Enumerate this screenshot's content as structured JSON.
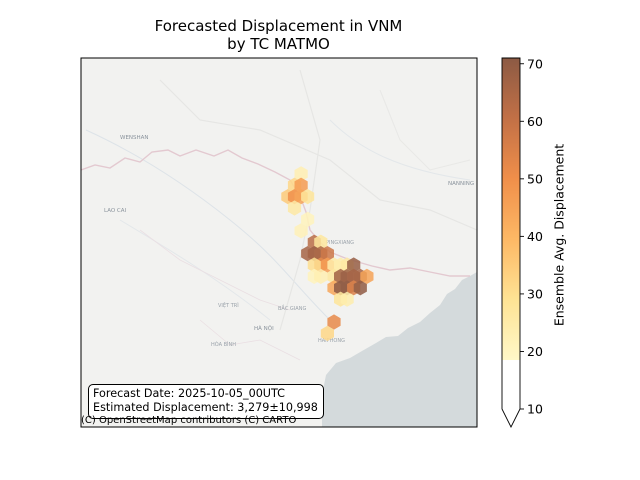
{
  "title": {
    "line1": "Forecasted Displacement in VNM",
    "line2": "by TC MATMO"
  },
  "info": {
    "forecast_date": "Forecast Date: 2025-10-05_00UTC",
    "estimated_displacement": "Estimated Displacement: 3,279±10,998"
  },
  "attribution": "(C) OpenStreetMap contributors (C) CARTO",
  "colorbar": {
    "label": "Ensemble Avg. Displacement",
    "min": 10,
    "max": 71,
    "ticks": [
      10,
      20,
      30,
      40,
      50,
      60,
      70
    ],
    "tick_labels": [
      "10",
      "20",
      "30",
      "40",
      "50",
      "60",
      "70"
    ],
    "cmap": "YlOrBr-to-brown",
    "extend": "min",
    "white_below": 18.5
  },
  "colors": {
    "land": "#f2f2f0",
    "sea": "#d4dadc",
    "border": "#000000"
  },
  "place_labels": [
    "WENSHAN",
    "LAO CAI",
    "PINGXIANG",
    "NANNING",
    "VIỆT TRÌ",
    "BẮC GIANG",
    "HÀ NỘI",
    "HÒA BÌNH",
    "HAIPHONG"
  ],
  "chart_data": {
    "type": "hexbin",
    "value_label": "Ensemble Avg. Displacement",
    "cells": [
      {
        "col": 7,
        "row": 2,
        "value": 23
      },
      {
        "col": 6,
        "row": 3,
        "value": 32
      },
      {
        "col": 7,
        "row": 3,
        "value": 47
      },
      {
        "col": 5,
        "row": 4,
        "value": 35
      },
      {
        "col": 6,
        "row": 4,
        "value": 50
      },
      {
        "col": 7,
        "row": 4,
        "value": 45
      },
      {
        "col": 8,
        "row": 4,
        "value": 28
      },
      {
        "col": 6,
        "row": 5,
        "value": 26
      },
      {
        "col": 8,
        "row": 6,
        "value": 21
      },
      {
        "col": 7,
        "row": 7,
        "value": 22
      },
      {
        "col": 9,
        "row": 8,
        "value": 62
      },
      {
        "col": 10,
        "row": 8,
        "value": 27
      },
      {
        "col": 9,
        "row": 9,
        "value": 68
      },
      {
        "col": 10,
        "row": 9,
        "value": 65
      },
      {
        "col": 11,
        "row": 9,
        "value": 58
      },
      {
        "col": 8,
        "row": 9,
        "value": 66
      },
      {
        "col": 10,
        "row": 10,
        "value": 52
      },
      {
        "col": 11,
        "row": 10,
        "value": 47
      },
      {
        "col": 12,
        "row": 10,
        "value": 25
      },
      {
        "col": 13,
        "row": 10,
        "value": 24
      },
      {
        "col": 14,
        "row": 10,
        "value": 26
      },
      {
        "col": 15,
        "row": 10,
        "value": 69
      },
      {
        "col": 9,
        "row": 10,
        "value": 30
      },
      {
        "col": 9,
        "row": 11,
        "value": 21
      },
      {
        "col": 10,
        "row": 11,
        "value": 23
      },
      {
        "col": 12,
        "row": 11,
        "value": 27
      },
      {
        "col": 13,
        "row": 11,
        "value": 67
      },
      {
        "col": 14,
        "row": 11,
        "value": 68
      },
      {
        "col": 15,
        "row": 11,
        "value": 66
      },
      {
        "col": 16,
        "row": 11,
        "value": 66
      },
      {
        "col": 17,
        "row": 11,
        "value": 45
      },
      {
        "col": 12,
        "row": 12,
        "value": 44
      },
      {
        "col": 13,
        "row": 12,
        "value": 71
      },
      {
        "col": 14,
        "row": 12,
        "value": 70
      },
      {
        "col": 15,
        "row": 12,
        "value": 55
      },
      {
        "col": 16,
        "row": 12,
        "value": 70
      },
      {
        "col": 13,
        "row": 13,
        "value": 28
      },
      {
        "col": 14,
        "row": 13,
        "value": 24
      },
      {
        "col": 12,
        "row": 15,
        "value": 52
      },
      {
        "col": 11,
        "row": 16,
        "value": 32
      }
    ]
  }
}
